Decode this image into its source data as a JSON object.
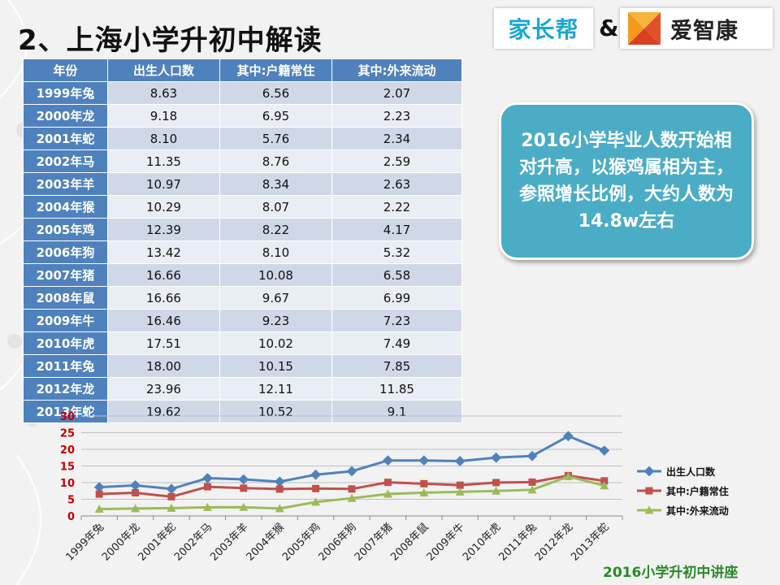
{
  "title": "2、上海小学升初中解读",
  "logos": {
    "left": "家长帮",
    "amp": "&",
    "right": "爱智康"
  },
  "table": {
    "headers": [
      "年份",
      "出生人口数",
      "其中:户籍常住",
      "其中:外来流动"
    ],
    "rows": [
      [
        "1999年兔",
        "8.63",
        "6.56",
        "2.07"
      ],
      [
        "2000年龙",
        "9.18",
        "6.95",
        "2.23"
      ],
      [
        "2001年蛇",
        "8.10",
        "5.76",
        "2.34"
      ],
      [
        "2002年马",
        "11.35",
        "8.76",
        "2.59"
      ],
      [
        "2003年羊",
        "10.97",
        "8.34",
        "2.63"
      ],
      [
        "2004年猴",
        "10.29",
        "8.07",
        "2.22"
      ],
      [
        "2005年鸡",
        "12.39",
        "8.22",
        "4.17"
      ],
      [
        "2006年狗",
        "13.42",
        "8.10",
        "5.32"
      ],
      [
        "2007年猪",
        "16.66",
        "10.08",
        "6.58"
      ],
      [
        "2008年鼠",
        "16.66",
        "9.67",
        "6.99"
      ],
      [
        "2009年牛",
        "16.46",
        "9.23",
        "7.23"
      ],
      [
        "2010年虎",
        "17.51",
        "10.02",
        "7.49"
      ],
      [
        "2011年兔",
        "18.00",
        "10.15",
        "7.85"
      ],
      [
        "2012年龙",
        "23.96",
        "12.11",
        "11.85"
      ],
      [
        "2013年蛇",
        "19.62",
        "10.52",
        "9.1"
      ]
    ]
  },
  "callout": "2016小学毕业人数开始相对升高，以猴鸡属相为主，参照增长比例，大约人数为14.8w左右",
  "footer": "2016小学升初中讲座",
  "colors": {
    "series1": "#4f81bd",
    "series2": "#c0504d",
    "series3": "#9bbb59",
    "header": "#4f81bd",
    "callout": "#4bacc6"
  },
  "chart_data": {
    "type": "line",
    "categories": [
      "1999年兔",
      "2000年龙",
      "2001年蛇",
      "2002年马",
      "2003年羊",
      "2004年猴",
      "2005年鸡",
      "2006年狗",
      "2007年猪",
      "2008年鼠",
      "2009年牛",
      "2010年虎",
      "2011年兔",
      "2012年龙",
      "2013年蛇"
    ],
    "series": [
      {
        "name": "出生人口数",
        "values": [
          8.63,
          9.18,
          8.1,
          11.35,
          10.97,
          10.29,
          12.39,
          13.42,
          16.66,
          16.66,
          16.46,
          17.51,
          18.0,
          23.96,
          19.62
        ]
      },
      {
        "name": "其中:户籍常住",
        "values": [
          6.56,
          6.95,
          5.76,
          8.76,
          8.34,
          8.07,
          8.22,
          8.1,
          10.08,
          9.67,
          9.23,
          10.02,
          10.15,
          12.11,
          10.52
        ]
      },
      {
        "name": "其中:外来流动",
        "values": [
          2.07,
          2.23,
          2.34,
          2.59,
          2.63,
          2.22,
          4.17,
          5.32,
          6.58,
          6.99,
          7.23,
          7.49,
          7.85,
          11.85,
          9.1
        ]
      }
    ],
    "yticks": [
      "0",
      "5",
      "10",
      "15",
      "20",
      "25",
      "30"
    ],
    "ylim": [
      0,
      30
    ],
    "grid": true,
    "legend": "right"
  }
}
